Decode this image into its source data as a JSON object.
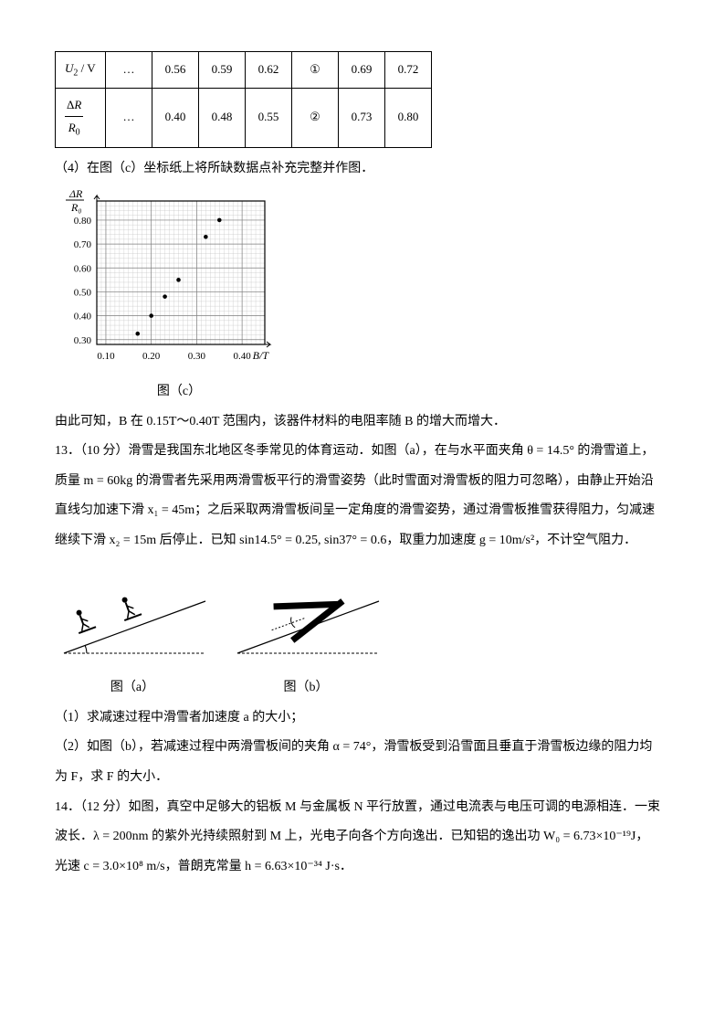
{
  "table": {
    "row1_label_html": "U<sub>2</sub> / V",
    "row2_label_html": "ΔR / R<sub>0</sub>",
    "cells_row1": [
      "…",
      "0.56",
      "0.59",
      "0.62",
      "①",
      "0.69",
      "0.72"
    ],
    "cells_row2": [
      "…",
      "0.40",
      "0.48",
      "0.55",
      "②",
      "0.73",
      "0.80"
    ]
  },
  "q4_text": "（4）在图（c）坐标纸上将所缺数据点补充完整并作图．",
  "chart": {
    "caption": "图（c）",
    "ylabel_top": "ΔR",
    "ylabel_bot": "R₀",
    "xlabel": "B/T",
    "x_ticks": [
      "0.10",
      "0.20",
      "0.30",
      "0.40"
    ],
    "y_ticks": [
      "0.30",
      "0.40",
      "0.50",
      "0.60",
      "0.70",
      "0.80"
    ],
    "xlim": [
      0.08,
      0.45
    ],
    "ylim": [
      0.28,
      0.88
    ],
    "grid_step_x": 0.01,
    "grid_step_y": 0.02,
    "points": [
      [
        0.17,
        0.325
      ],
      [
        0.2,
        0.4
      ],
      [
        0.23,
        0.48
      ],
      [
        0.26,
        0.55
      ],
      [
        0.32,
        0.73
      ],
      [
        0.35,
        0.8
      ]
    ],
    "bg": "#ffffff",
    "grid_minor": "#c9c9c9",
    "grid_major": "#808080",
    "axis_color": "#000000",
    "point_color": "#000000"
  },
  "line_after_chart": "由此可知，B 在 0.15T～0.40T 范围内，该器件材料的电阻率随 B 的增大而增大．",
  "q13_lines": [
    "13．（10 分）滑雪是我国东北地区冬季常见的体育运动．如图（a），在与水平面夹角 θ = 14.5° 的滑雪道上，",
    "质量 m = 60kg 的滑雪者先采用两滑雪板平行的滑雪姿势（此时雪面对滑雪板的阻力可忽略），由静止开始沿",
    "直线匀加速下滑 x₁ = 45m；之后采取两滑雪板间呈一定角度的滑雪姿势，通过滑雪板推雪获得阻力，匀减速",
    "继续下滑 x₂ = 15m 后停止．已知 sin14.5° = 0.25, sin37° = 0.6，取重力加速度 g = 10m/s²，不计空气阻力．"
  ],
  "fig_a_caption": "图（a）",
  "fig_b_caption": "图（b）",
  "q13_sub1": "（1）求减速过程中滑雪者加速度 a 的大小；",
  "q13_sub2a": "（2）如图（b），若减速过程中两滑雪板间的夹角 α = 74°，滑雪板受到沿雪面且垂直于滑雪板边缘的阻力均",
  "q13_sub2b": "为 F，求 F 的大小．",
  "q14_lines": [
    "14．（12 分）如图，真空中足够大的铝板 M 与金属板 N 平行放置，通过电流表与电压可调的电源相连．一束",
    "波长．λ = 200nm 的紫外光持续照射到 M 上，光电子向各个方向逸出．已知铝的逸出功 W₀ = 6.73×10⁻¹⁹J，",
    "光速 c = 3.0×10⁸ m/s，普朗克常量 h = 6.63×10⁻³⁴ J·s．"
  ]
}
